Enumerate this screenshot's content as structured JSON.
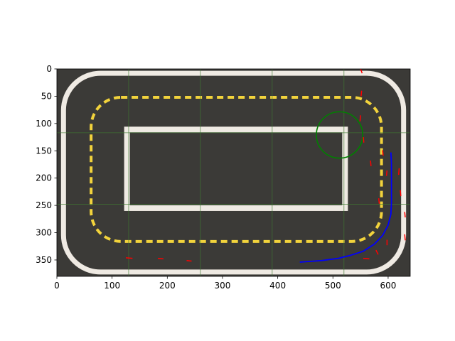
{
  "chart_data": {
    "type": "scatter",
    "title": "",
    "xlabel": "",
    "ylabel": "",
    "xlim": [
      0,
      640
    ],
    "ylim": [
      380,
      0
    ],
    "y_inverted": true,
    "grid": false,
    "background": "top-down camera image of a driving track: dark grey asphalt, white outer border, white inner rectangle, dashed yellow center line, stitched from a 5x3 grid of tiles separated by thin green seams",
    "x_ticks": [
      0,
      100,
      200,
      300,
      400,
      500,
      600
    ],
    "y_ticks": [
      0,
      50,
      100,
      150,
      200,
      250,
      300,
      350
    ],
    "tile_grid": {
      "columns_at_x": [
        130,
        260,
        390,
        520
      ],
      "rows_at_y": [
        117,
        248
      ]
    },
    "series": [
      {
        "type": "line",
        "color": "#0000ff",
        "points": [
          [
            440,
            354
          ],
          [
            480,
            351
          ],
          [
            510,
            347
          ],
          [
            530,
            342
          ],
          [
            555,
            334
          ],
          [
            575,
            321
          ],
          [
            590,
            305
          ],
          [
            600,
            286
          ],
          [
            605,
            266
          ],
          [
            606,
            245
          ],
          [
            606,
            220
          ],
          [
            606,
            190
          ],
          [
            606,
            172
          ],
          [
            605,
            153
          ]
        ]
      },
      {
        "type": "circle",
        "color": "#008000",
        "center": [
          512,
          121
        ],
        "radius": 42
      },
      {
        "type": "segments",
        "color": "#ff0000",
        "segments": [
          [
            [
              550,
              0
            ],
            [
              553,
              8
            ]
          ],
          [
            [
              552,
              40
            ],
            [
              551,
              50
            ]
          ],
          [
            [
              550,
              85
            ],
            [
              549,
              96
            ]
          ],
          [
            [
              555,
              125
            ],
            [
              556,
              135
            ]
          ],
          [
            [
              568,
              168
            ],
            [
              569,
              178
            ]
          ],
          [
            [
              590,
              149
            ],
            [
              591,
              159
            ]
          ],
          [
            [
              598,
              186
            ],
            [
              597,
              196
            ]
          ],
          [
            [
              620,
              182
            ],
            [
              619,
              194
            ]
          ],
          [
            [
              622,
              222
            ],
            [
              623,
              233
            ]
          ],
          [
            [
              583,
              237
            ],
            [
              584,
              247
            ]
          ],
          [
            [
              630,
              262
            ],
            [
              631,
              272
            ]
          ],
          [
            [
              630,
              303
            ],
            [
              631,
              314
            ]
          ],
          [
            [
              598,
              313
            ],
            [
              598,
              323
            ]
          ],
          [
            [
              578,
              332
            ],
            [
              582,
              340
            ]
          ],
          [
            [
              555,
              347
            ],
            [
              566,
              348
            ]
          ],
          [
            [
              125,
              346
            ],
            [
              137,
              347
            ]
          ],
          [
            [
              183,
              347
            ],
            [
              193,
              348
            ]
          ],
          [
            [
              235,
              351
            ],
            [
              244,
              352
            ]
          ]
        ]
      }
    ]
  },
  "colors": {
    "axis": "#000000",
    "asphalt": "#3b3a37",
    "lane_border": "#efeae3",
    "center_line": "#f2d33c",
    "tile_seam": "#3f7a32",
    "path_blue": "#0000ff",
    "circle_green": "#008000",
    "marker_red": "#ff0000"
  }
}
